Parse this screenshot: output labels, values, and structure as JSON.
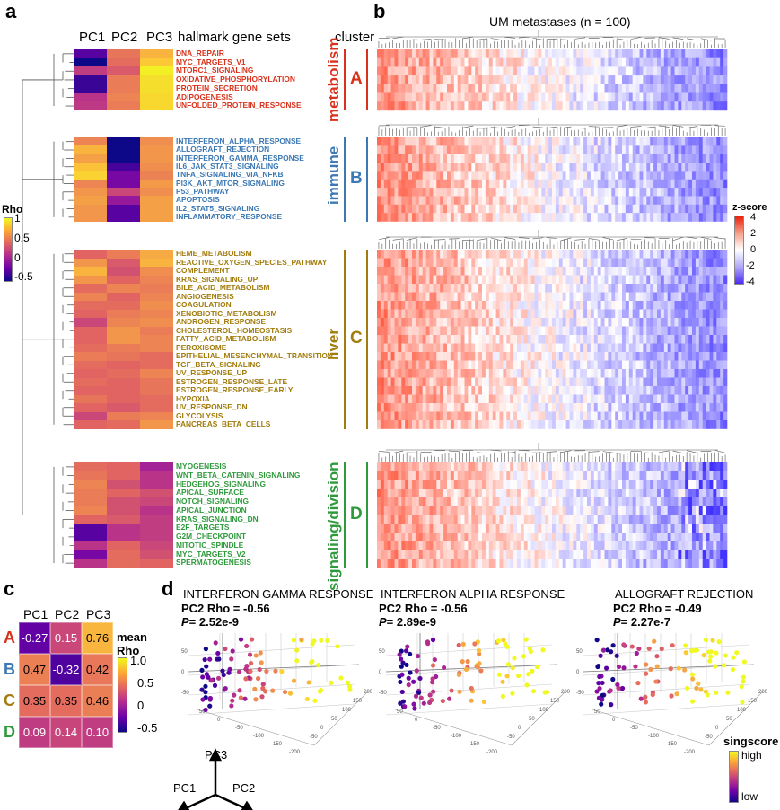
{
  "panel_labels": {
    "a": "a",
    "b": "b",
    "c": "c",
    "d": "d"
  },
  "panel_a": {
    "headers": [
      "PC1",
      "PC2",
      "PC3"
    ],
    "gene_sets_header": "hallmark gene sets",
    "legend": {
      "title": "Rho",
      "ticks": [
        "1",
        "0.5",
        "0",
        "-0.5"
      ]
    },
    "groups": [
      {
        "id": "A",
        "color": "#d9321c",
        "rows": [
          [
            "DNA_REPAIR",
            -0.3,
            0.4,
            0.75
          ],
          [
            "MYC_TARGETS_V1",
            -0.5,
            0.35,
            0.85
          ],
          [
            "MTORC1_SIGNALING",
            0.1,
            0.25,
            0.97
          ],
          [
            "OXIDATIVE_PHOSPHORYLATION",
            -0.38,
            0.45,
            0.92
          ],
          [
            "PROTEIN_SECRETION",
            -0.38,
            0.45,
            0.92
          ],
          [
            "ADIPOGENESIS",
            0.05,
            0.5,
            0.9
          ],
          [
            "UNFOLDED_PROTEIN_RESPONSE",
            0.08,
            0.45,
            0.9
          ]
        ]
      },
      {
        "id": "B",
        "color": "#3b78b4",
        "rows": [
          [
            "INTERFERON_ALPHA_RESPONSE",
            0.5,
            -0.6,
            0.55
          ],
          [
            "ALLOGRAFT_REJECTION",
            0.75,
            -0.55,
            0.6
          ],
          [
            "INTERFERON_GAMMA_RESPONSE",
            0.65,
            -0.55,
            0.6
          ],
          [
            "IL6_JAK_STAT3_SIGNALING",
            0.82,
            -0.35,
            0.55
          ],
          [
            "TNFA_SIGNALING_VIA_NFKB",
            0.88,
            -0.2,
            0.48
          ],
          [
            "PI3K_AKT_MTOR_SIGNALING",
            0.5,
            -0.2,
            0.62
          ],
          [
            "P53_PATHWAY",
            0.6,
            0.15,
            0.55
          ],
          [
            "APOPTOSIS",
            0.65,
            -0.1,
            0.65
          ],
          [
            "IL2_STAT5_SIGNALING",
            0.6,
            -0.3,
            0.65
          ],
          [
            "INFLAMMATORY_RESPONSE",
            0.6,
            -0.3,
            0.65
          ]
        ]
      },
      {
        "id": "C",
        "color": "#a27c0c",
        "rows": [
          [
            "HEME_METABOLISM",
            0.3,
            0.45,
            0.7
          ],
          [
            "REACTIVE_OXYGEN_SPECIES_PATHWAY",
            0.6,
            0.25,
            0.75
          ],
          [
            "COMPLEMENT",
            0.75,
            0.2,
            0.55
          ],
          [
            "KRAS_SIGNALING_UP",
            0.6,
            0.3,
            0.5
          ],
          [
            "BILE_ACID_METABOLISM",
            0.35,
            0.5,
            0.45
          ],
          [
            "ANGIOGENESIS",
            0.5,
            0.3,
            0.5
          ],
          [
            "COAGULATION",
            0.35,
            0.35,
            0.55
          ],
          [
            "XENOBIOTIC_METABOLISM",
            0.3,
            0.45,
            0.5
          ],
          [
            "ANDROGEN_RESPONSE",
            0.15,
            0.5,
            0.55
          ],
          [
            "CHOLESTEROL_HOMEOSTASIS",
            0.3,
            0.6,
            0.45
          ],
          [
            "FATTY_ACID_METABOLISM",
            0.3,
            0.6,
            0.5
          ],
          [
            "PEROXISOME",
            0.35,
            0.45,
            0.5
          ],
          [
            "EPITHELIAL_MESENCHYMAL_TRANSITION",
            0.45,
            0.4,
            0.35
          ],
          [
            "TGF_BETA_SIGNALING",
            0.35,
            0.3,
            0.35
          ],
          [
            "UV_RESPONSE_UP",
            0.3,
            0.35,
            0.5
          ],
          [
            "ESTROGEN_RESPONSE_LATE",
            0.35,
            0.3,
            0.4
          ],
          [
            "ESTROGEN_RESPONSE_EARLY",
            0.3,
            0.3,
            0.4
          ],
          [
            "HYPOXIA",
            0.4,
            0.3,
            0.35
          ],
          [
            "UV_RESPONSE_DN",
            0.3,
            0.25,
            0.35
          ],
          [
            "GLYCOLYSIS",
            0.15,
            0.45,
            0.5
          ],
          [
            "PANCREAS_BETA_CELLS",
            0.3,
            0.35,
            0.6
          ],
          [
            "KRAS_SIGNALING_UP",
            0.3,
            0.3,
            0.3
          ]
        ]
      },
      {
        "id": "D",
        "color": "#2e9a3c",
        "rows": [
          [
            "MYOGENESIS",
            0.35,
            0.3,
            -0.05
          ],
          [
            "WNT_BETA_CATENIN_SIGNALING",
            0.4,
            0.3,
            0.05
          ],
          [
            "HEDGEHOG_SIGNALING",
            0.5,
            0.2,
            0.05
          ],
          [
            "APICAL_SURFACE",
            0.45,
            0.3,
            0.2
          ],
          [
            "NOTCH_SIGNALING",
            0.45,
            0.2,
            0.15
          ],
          [
            "APICAL_JUNCTION",
            0.5,
            0.2,
            0.05
          ],
          [
            "KRAS_SIGNALING_DN",
            0.3,
            0.25,
            0.1
          ],
          [
            "E2F_TARGETS",
            -0.3,
            0.05,
            0.1
          ],
          [
            "G2M_CHECKPOINT",
            -0.3,
            0.05,
            0.1
          ],
          [
            "MITOTIC_SPINDLE",
            0.05,
            0.3,
            0.15
          ],
          [
            "MYC_TARGETS_V2",
            -0.2,
            0.35,
            0.2
          ],
          [
            "SPERMATOGENESIS",
            0.05,
            0.35,
            0.3
          ]
        ]
      }
    ]
  },
  "panel_b": {
    "title": "UM metastases (n = 100)",
    "cluster_header": "cluster",
    "clusters": [
      {
        "letter": "A",
        "name": "metabolism"
      },
      {
        "letter": "B",
        "name": "immune"
      },
      {
        "letter": "C",
        "name": "liver"
      },
      {
        "letter": "D",
        "name": "signaling/division"
      }
    ],
    "legend": {
      "title": "z-score",
      "ticks": [
        "4",
        "2",
        "0",
        "-2",
        "-4"
      ]
    }
  },
  "panel_c": {
    "headers": [
      "PC1",
      "PC2",
      "PC3"
    ],
    "rows": [
      "A",
      "B",
      "C",
      "D"
    ],
    "values": [
      [
        -0.27,
        0.15,
        0.76
      ],
      [
        0.47,
        -0.32,
        0.42
      ],
      [
        0.35,
        0.35,
        0.46
      ],
      [
        0.09,
        0.14,
        0.1
      ]
    ],
    "value_labels": [
      [
        "-0.27",
        "0.15",
        "0.76"
      ],
      [
        "0.47",
        "-0.32",
        "0.42"
      ],
      [
        "0.35",
        "0.35",
        "0.46"
      ],
      [
        "0.09",
        "0.14",
        "0.10"
      ]
    ],
    "legend": {
      "title1": "mean",
      "title2": "Rho",
      "ticks": [
        "1.0",
        "0.5",
        "0",
        "-0.5"
      ]
    }
  },
  "chart_data": [
    {
      "type": "scatter",
      "title": "INTERFERON GAMMA RESPONSE",
      "stat": "PC2 Rho = -0.56",
      "p_label": "P",
      "p_value": "= 2.52e-9"
    },
    {
      "type": "scatter",
      "title": "INTERFERON ALPHA RESPONSE",
      "stat": "PC2 Rho = -0.56",
      "p_label": "P",
      "p_value": "= 2.89e-9"
    },
    {
      "type": "scatter",
      "title": "ALLOGRAFT REJECTION",
      "stat": "PC2 Rho = -0.49",
      "p_label": "P",
      "p_value": "= 2.27e-7"
    }
  ],
  "panel_d": {
    "ticks_z": [
      "50",
      "0",
      "-50"
    ],
    "ticks_x": [
      "50",
      "0",
      "-50",
      "-100",
      "-150",
      "-200"
    ],
    "ticks_y": [
      "200",
      "150",
      "100",
      "50",
      "0",
      "-50"
    ],
    "axes": {
      "pc1": "PC1",
      "pc2": "PC2",
      "pc3": "PC3"
    },
    "legend": {
      "title": "singscore",
      "high": "high",
      "low": "low"
    }
  }
}
